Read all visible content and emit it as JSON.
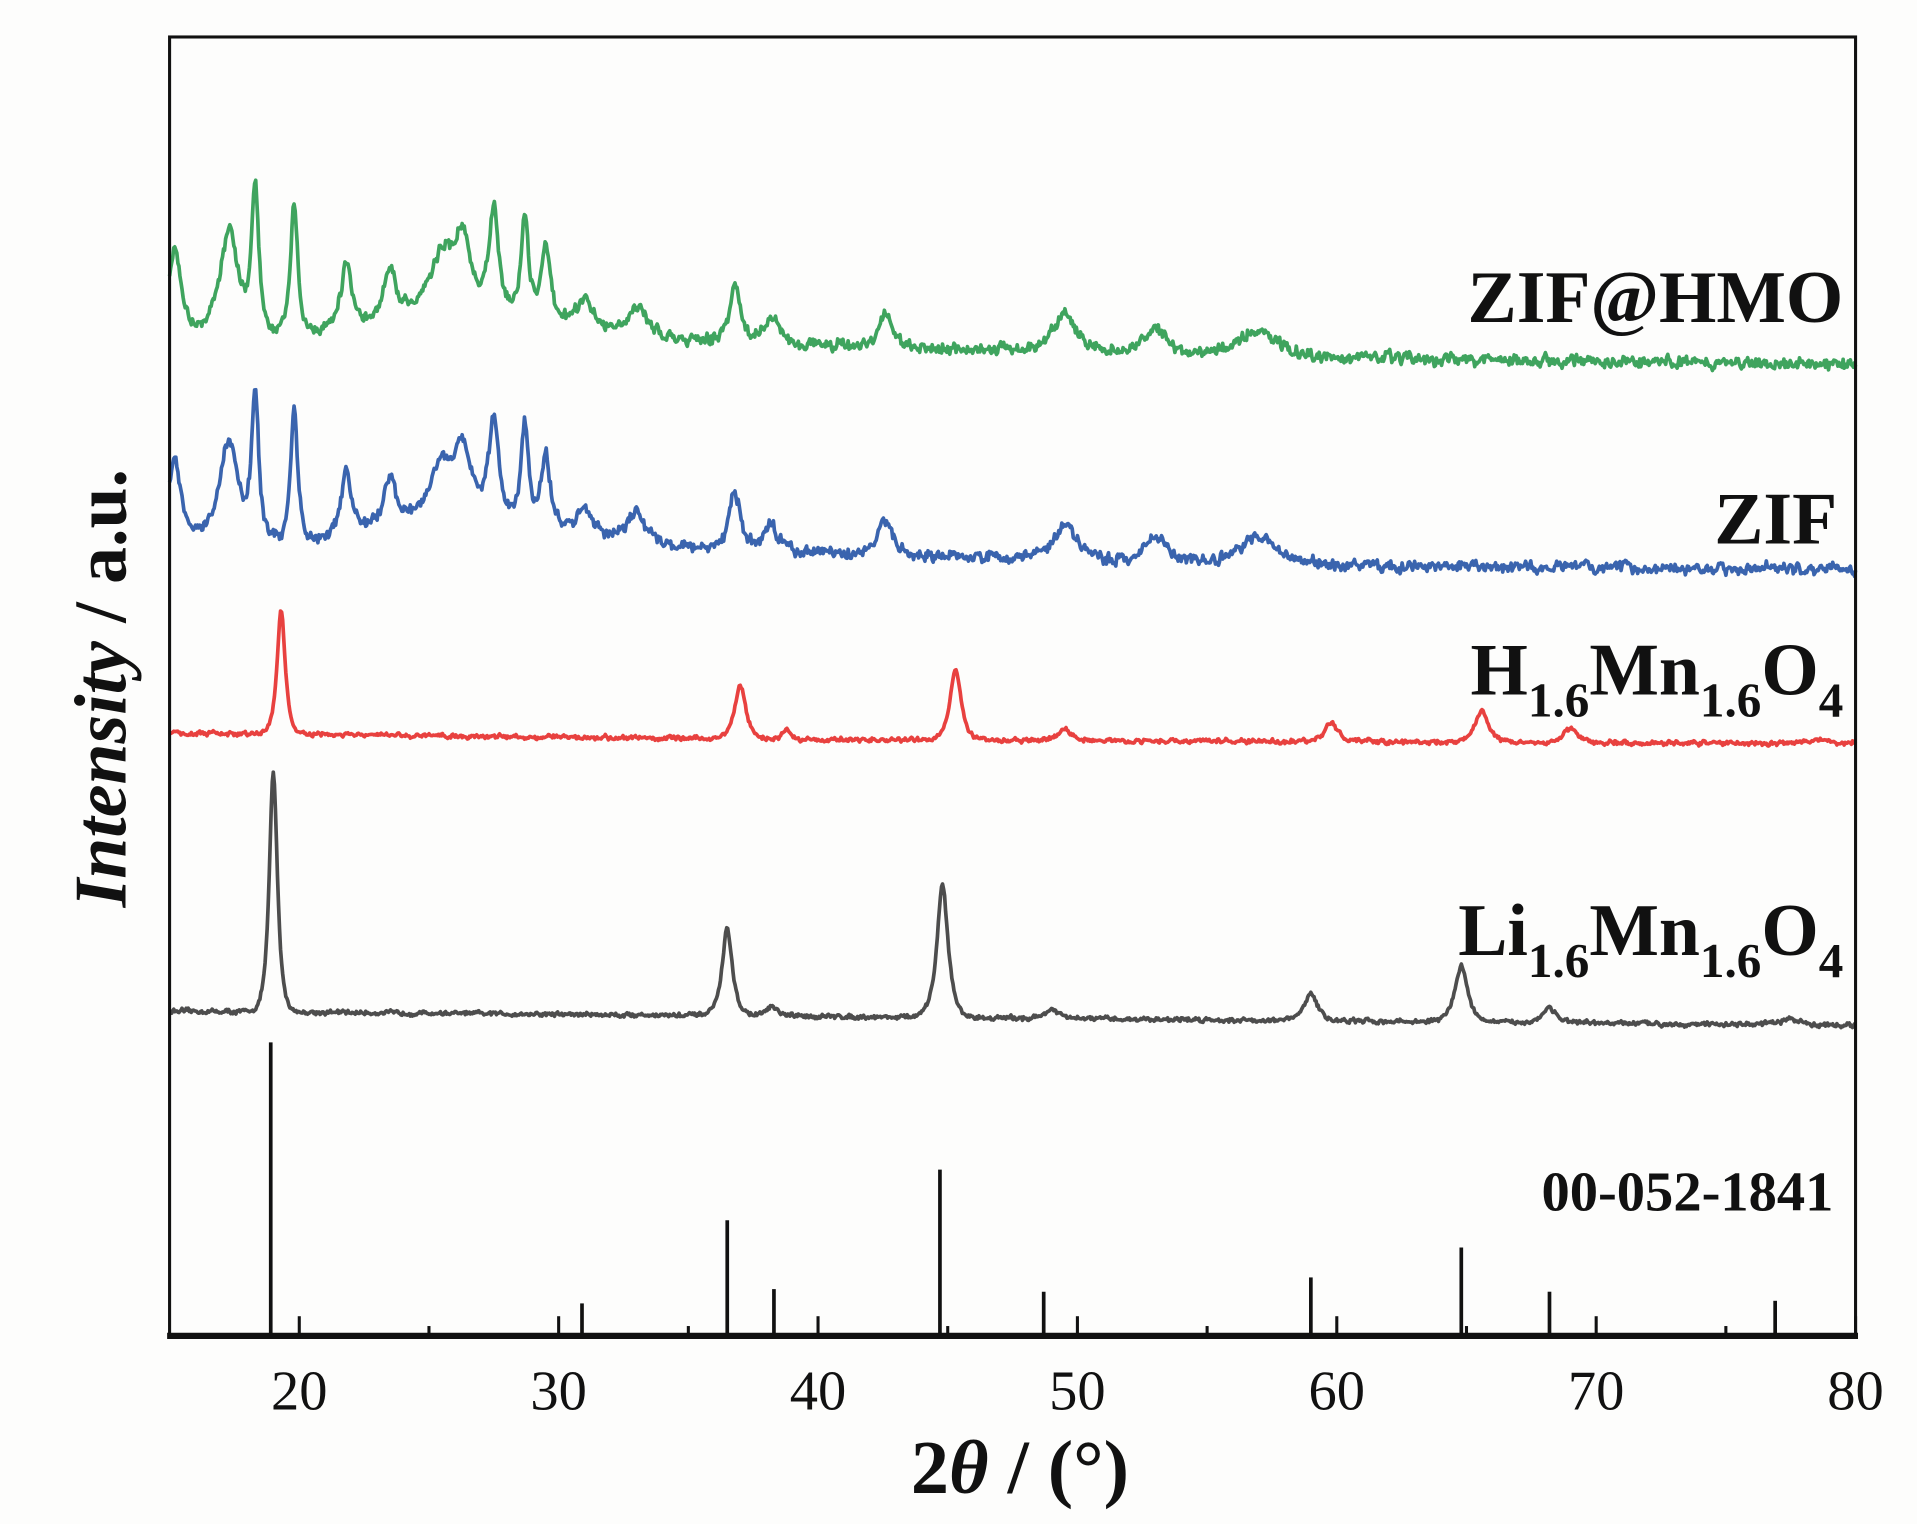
{
  "chart_data": {
    "type": "line",
    "title": "",
    "xlabel": "2θ / (°)",
    "xlabel_parts": [
      "2",
      "θ",
      " / (°)"
    ],
    "ylabel": "Intensity / a.u.",
    "ylabel_parts": [
      "Intensity",
      " / a.u."
    ],
    "xlim": [
      15,
      80
    ],
    "ylim": [
      0,
      100
    ],
    "xticks": [
      20,
      30,
      40,
      50,
      60,
      70,
      80
    ],
    "xtick_labels": [
      "20",
      "30",
      "40",
      "50",
      "60",
      "70",
      "80"
    ],
    "minor_xticks": [
      25,
      35,
      45,
      55,
      65,
      75
    ],
    "grid": false,
    "legend": "inline labels at right of each trace",
    "reference": {
      "label": "00-052-1841",
      "color": "#111111",
      "sticks": [
        [
          18.9,
          22.6
        ],
        [
          30.9,
          2.5
        ],
        [
          36.5,
          8.9
        ],
        [
          38.3,
          3.6
        ],
        [
          44.7,
          12.8
        ],
        [
          48.7,
          3.4
        ],
        [
          59.0,
          4.5
        ],
        [
          64.8,
          6.8
        ],
        [
          68.2,
          3.4
        ],
        [
          76.9,
          2.7
        ]
      ]
    },
    "series": [
      {
        "key": "li",
        "label_parts": [
          "Li",
          "1.6",
          "Mn",
          "1.6",
          "O",
          "4"
        ],
        "color": "#4d4d4d",
        "baseline": [
          [
            15,
            25.0
          ],
          [
            40,
            24.6
          ],
          [
            80,
            23.9
          ]
        ],
        "peaks": [
          [
            19.0,
            18.4,
            0.22
          ],
          [
            36.5,
            6.6,
            0.28
          ],
          [
            38.2,
            0.7,
            0.3
          ],
          [
            44.8,
            10.2,
            0.3
          ],
          [
            49.0,
            0.7,
            0.35
          ],
          [
            59.0,
            2.1,
            0.35
          ],
          [
            64.8,
            4.3,
            0.35
          ],
          [
            68.2,
            1.2,
            0.35
          ],
          [
            77.5,
            0.4,
            0.6
          ]
        ],
        "noise": 0.22
      },
      {
        "key": "h",
        "label_parts": [
          "H",
          "1.6",
          "Mn",
          "1.6",
          "O",
          "4"
        ],
        "color": "#e8413f",
        "baseline": [
          [
            15,
            46.4
          ],
          [
            40,
            45.9
          ],
          [
            80,
            45.6
          ]
        ],
        "peaks": [
          [
            19.3,
            9.6,
            0.22
          ],
          [
            37.0,
            4.1,
            0.3
          ],
          [
            38.8,
            0.8,
            0.2
          ],
          [
            45.3,
            5.5,
            0.3
          ],
          [
            49.5,
            0.9,
            0.35
          ],
          [
            59.8,
            1.5,
            0.35
          ],
          [
            65.6,
            2.5,
            0.35
          ],
          [
            69.0,
            1.1,
            0.35
          ],
          [
            78.5,
            0.3,
            0.6
          ]
        ],
        "noise": 0.22
      },
      {
        "key": "zif",
        "label_parts": [
          "ZIF"
        ],
        "color": "#3a64ae",
        "baseline": [
          [
            15,
            61.7
          ],
          [
            20,
            61.2
          ],
          [
            24,
            63.1
          ],
          [
            27,
            64.0
          ],
          [
            30,
            62.2
          ],
          [
            35,
            60.7
          ],
          [
            40,
            60.3
          ],
          [
            50,
            59.8
          ],
          [
            60,
            59.3
          ],
          [
            80,
            59.0
          ]
        ],
        "peaks": [
          [
            15.2,
            6.1,
            0.3
          ],
          [
            17.3,
            7.6,
            0.5
          ],
          [
            18.3,
            10.6,
            0.2
          ],
          [
            19.8,
            10.1,
            0.2
          ],
          [
            21.8,
            4.7,
            0.25
          ],
          [
            23.5,
            3.5,
            0.3
          ],
          [
            25.5,
            4.0,
            0.6
          ],
          [
            26.3,
            4.5,
            0.4
          ],
          [
            27.5,
            7.1,
            0.25
          ],
          [
            28.7,
            7.6,
            0.2
          ],
          [
            29.5,
            5.5,
            0.25
          ],
          [
            31.0,
            2.0,
            0.4
          ],
          [
            33.0,
            2.0,
            0.5
          ],
          [
            36.8,
            4.4,
            0.3
          ],
          [
            38.2,
            2.0,
            0.4
          ],
          [
            42.6,
            2.5,
            0.4
          ],
          [
            49.5,
            2.8,
            0.6
          ],
          [
            53.0,
            2.0,
            0.6
          ],
          [
            57.0,
            2.0,
            1.0
          ]
        ],
        "noise": 0.55
      },
      {
        "key": "zifhmo",
        "label_parts": [
          "ZIF@HMO"
        ],
        "color": "#3fa45e",
        "baseline": [
          [
            15,
            77.7
          ],
          [
            20,
            77.2
          ],
          [
            24,
            79.1
          ],
          [
            27,
            80.0
          ],
          [
            30,
            78.2
          ],
          [
            35,
            76.7
          ],
          [
            40,
            76.3
          ],
          [
            50,
            75.8
          ],
          [
            60,
            75.3
          ],
          [
            80,
            74.8
          ]
        ],
        "peaks": [
          [
            15.2,
            6.1,
            0.3
          ],
          [
            17.3,
            7.6,
            0.5
          ],
          [
            18.3,
            10.6,
            0.2
          ],
          [
            19.8,
            10.1,
            0.2
          ],
          [
            21.8,
            4.7,
            0.25
          ],
          [
            23.5,
            3.5,
            0.3
          ],
          [
            25.5,
            4.0,
            0.6
          ],
          [
            26.3,
            4.5,
            0.4
          ],
          [
            27.5,
            7.1,
            0.25
          ],
          [
            28.7,
            7.6,
            0.2
          ],
          [
            29.5,
            5.5,
            0.25
          ],
          [
            31.0,
            2.0,
            0.4
          ],
          [
            33.0,
            2.0,
            0.5
          ],
          [
            36.8,
            4.4,
            0.3
          ],
          [
            38.2,
            2.0,
            0.4
          ],
          [
            42.6,
            2.5,
            0.4
          ],
          [
            49.5,
            2.8,
            0.6
          ],
          [
            53.0,
            2.0,
            0.6
          ],
          [
            57.0,
            2.0,
            1.0
          ]
        ],
        "noise": 0.55
      }
    ]
  }
}
